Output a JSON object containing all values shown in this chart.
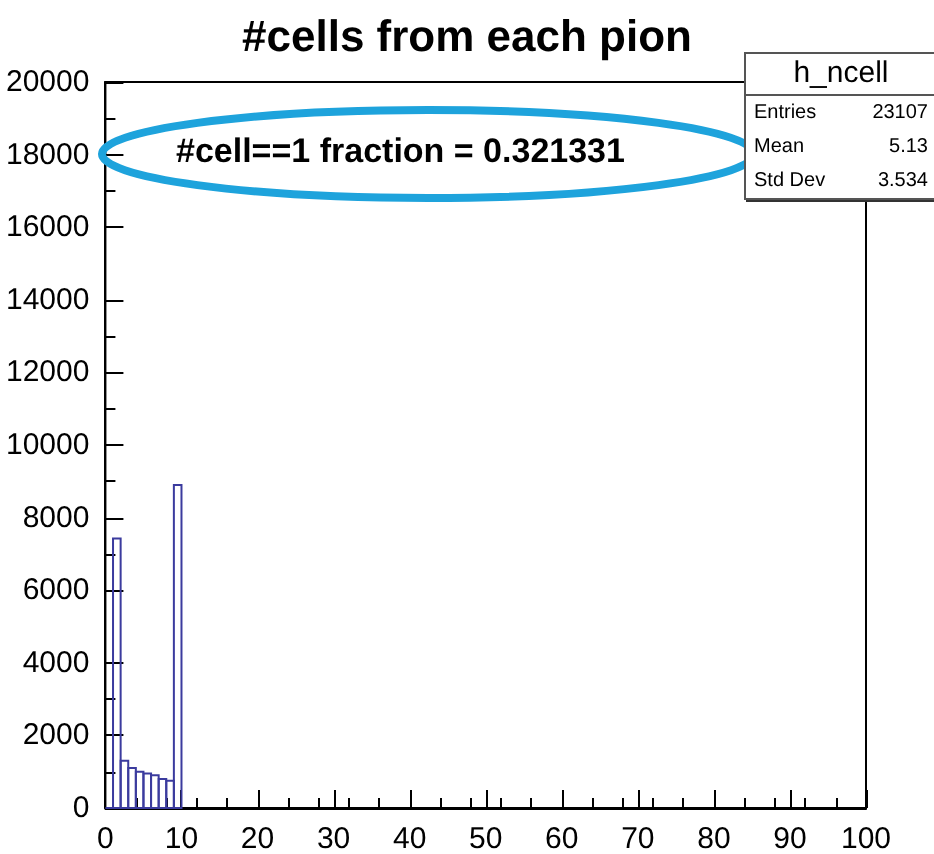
{
  "chart_data": {
    "type": "histogram",
    "title": "#cells from each pion",
    "bins": [
      0,
      1,
      2,
      3,
      4,
      5,
      6,
      7,
      8,
      9,
      10
    ],
    "values": [
      0,
      7425,
      1300,
      1100,
      1000,
      950,
      900,
      800,
      750,
      8900
    ],
    "color": "#3b3b9e",
    "xlim": [
      0,
      100
    ],
    "xticks": [
      0,
      10,
      20,
      30,
      40,
      50,
      60,
      70,
      80,
      90,
      100
    ],
    "ylim": [
      0,
      20000
    ],
    "yticks": [
      0,
      2000,
      4000,
      6000,
      8000,
      10000,
      12000,
      14000,
      16000,
      18000,
      20000
    ],
    "grid": false,
    "annotations": [
      "#cell==1 fraction = 0.321331",
      "h_ncell",
      "Entries",
      "23107",
      "Mean",
      "5.13",
      "Std Dev",
      "3.534"
    ]
  }
}
